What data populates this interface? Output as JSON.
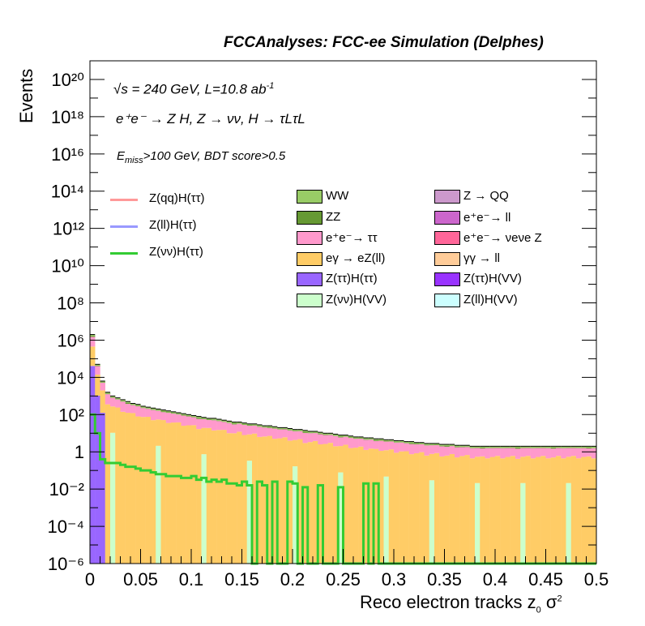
{
  "header": {
    "title": "FCCAnalyses: FCC-ee Simulation (Delphes)"
  },
  "annotations": {
    "energy": "√s = 240 GeV, L=10.8 ab",
    "energy_exp": "-1",
    "process": "e⁺e⁻ → Z H, Z → νν, H → τLτL",
    "selection_main": "E",
    "selection_sub": "miss",
    "selection_rest": ">100 GeV, BDT score>0.5"
  },
  "chart_data": {
    "type": "bar",
    "xlabel": "Reco electron tracks z0 σ²",
    "xlabel_main": "Reco electron tracks z",
    "xlabel_sub": "0",
    "xlabel_tail": " σ",
    "xlabel_sup": "2",
    "ylabel": "Events",
    "xlim": [
      0,
      0.5
    ],
    "ylim": [
      1e-06,
      1e+21
    ],
    "ylog": true,
    "xticks": [
      "0",
      "0.05",
      "0.1",
      "0.15",
      "0.2",
      "0.25",
      "0.3",
      "0.35",
      "0.4",
      "0.45",
      "0.5"
    ],
    "yticks": [
      "10⁻⁶",
      "10⁻⁴",
      "10⁻²",
      "1",
      "10²",
      "10⁴",
      "10⁶",
      "10⁸",
      "10¹⁰",
      "10¹²",
      "10¹⁴",
      "10¹⁶",
      "10¹⁸",
      "10²⁰"
    ],
    "bins": 100,
    "stacked_totals_log10": [
      6.3,
      4.7,
      3.8,
      3.2,
      3.0,
      2.9,
      2.8,
      2.7,
      2.6,
      2.55,
      2.45,
      2.4,
      2.35,
      2.3,
      2.25,
      2.2,
      2.15,
      2.1,
      2.05,
      2.0,
      1.95,
      1.9,
      1.85,
      1.8,
      1.8,
      1.75,
      1.7,
      1.65,
      1.6,
      1.6,
      1.55,
      1.5,
      1.5,
      1.45,
      1.4,
      1.4,
      1.35,
      1.3,
      1.3,
      1.25,
      1.2,
      1.2,
      1.15,
      1.1,
      1.1,
      1.05,
      1.0,
      1.0,
      0.95,
      0.9,
      0.9,
      0.85,
      0.8,
      0.8,
      0.75,
      0.75,
      0.7,
      0.7,
      0.65,
      0.65,
      0.6,
      0.6,
      0.55,
      0.55,
      0.5,
      0.5,
      0.45,
      0.45,
      0.45,
      0.4,
      0.4,
      0.4,
      0.35,
      0.35,
      0.35,
      0.3,
      0.3,
      0.3,
      0.3,
      0.3,
      0.3,
      0.3,
      0.3,
      0.3,
      0.3,
      0.3,
      0.3,
      0.3,
      0.3,
      0.3,
      0.3,
      0.3,
      0.3,
      0.3,
      0.3,
      0.3,
      0.3,
      0.3,
      0.3,
      0.3
    ],
    "stack_order": [
      "Z(νν)H(VV)",
      "Z(ττ)H(ττ)",
      "eγ → eZ(ll)",
      "e⁺e⁻→ ττ",
      "ZZ",
      "WW"
    ],
    "signal_lines": [
      {
        "name": "Z(qq)H(ττ)",
        "color": "#ff9999",
        "values_log10": []
      },
      {
        "name": "Z(ll)H(ττ)",
        "color": "#9999ff",
        "values_log10": []
      },
      {
        "name": "Z(νν)H(ττ)",
        "color": "#33cc33",
        "values_log10": [
          2.0,
          1.0,
          -0.4,
          -0.6,
          -0.6,
          -0.6,
          -0.7,
          -0.8,
          -0.8,
          -0.9,
          -1.0,
          -1.0,
          -1.1,
          -1.2,
          -1.2,
          -1.3,
          -1.3,
          -1.3,
          -1.4,
          -1.4,
          -1.3,
          -1.5,
          -1.4,
          -1.6,
          -1.5,
          -1.6,
          -1.5,
          -1.7,
          -1.7,
          -1.8,
          -1.6,
          -1.8,
          -6,
          -1.6,
          -1.8,
          -6,
          -1.6,
          -6,
          -6,
          -1.6,
          -1.7,
          -6,
          -1.9,
          -6,
          -6,
          -1.8,
          -6,
          -6,
          -6,
          -1.9,
          -6,
          -6,
          -6,
          -6,
          -1.7,
          -6,
          -1.7,
          -6,
          -6,
          -6,
          -6,
          -6,
          -6,
          -6,
          -6,
          -6,
          -6,
          -6,
          -6,
          -6,
          -6,
          -6,
          -6,
          -6,
          -6,
          -6,
          -6,
          -6,
          -6,
          -6,
          -6,
          -6,
          -6,
          -6,
          -6,
          -6,
          -6,
          -6,
          -6,
          -6,
          -6,
          -6,
          -6,
          -6,
          -6,
          -6,
          -6,
          -6,
          -6,
          -6
        ]
      }
    ],
    "legend_left": [
      {
        "label": "Z(qq)H(ττ)",
        "color": "#ff9999"
      },
      {
        "label": "Z(ll)H(ττ)",
        "color": "#9999ff"
      },
      {
        "label": "Z(νν)H(ττ)",
        "color": "#33cc33"
      }
    ],
    "legend_fills": [
      {
        "label": "WW",
        "color": "#99cc66"
      },
      {
        "label": "Z → QQ",
        "color": "#cc99cc"
      },
      {
        "label": "ZZ",
        "color": "#669933"
      },
      {
        "label": "e⁺e⁻→ ll",
        "color": "#cc66cc"
      },
      {
        "label": "e⁺e⁻→ ττ",
        "color": "#ff99cc"
      },
      {
        "label": "e⁺e⁻→ νeνe Z",
        "color": "#ff6699"
      },
      {
        "label": "eγ → eZ(ll)",
        "color": "#ffcc66"
      },
      {
        "label": "γγ → ll",
        "color": "#ffcc99"
      },
      {
        "label": "Z(ττ)H(ττ)",
        "color": "#9966ff"
      },
      {
        "label": "Z(ττ)H(VV)",
        "color": "#9933ff"
      },
      {
        "label": "Z(νν)H(VV)",
        "color": "#ccffcc"
      },
      {
        "label": "Z(ll)H(VV)",
        "color": "#ccffff"
      }
    ]
  }
}
